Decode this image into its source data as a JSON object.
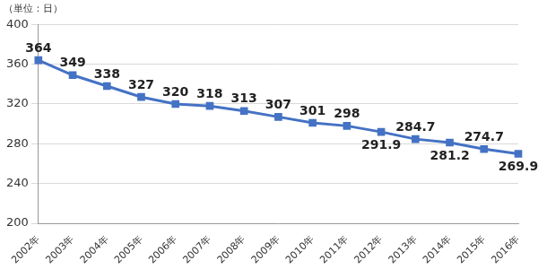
{
  "chart_data": {
    "type": "line",
    "y_label": "（単位：日）",
    "categories": [
      "2002年",
      "2003年",
      "2004年",
      "2005年",
      "2006年",
      "2007年",
      "2008年",
      "2009年",
      "2010年",
      "2011年",
      "2012年",
      "2013年",
      "2014年",
      "2015年",
      "2016年"
    ],
    "values": [
      364,
      349,
      338,
      327,
      320,
      318,
      313,
      307,
      301,
      298,
      291.9,
      284.7,
      281.2,
      274.7,
      269.9
    ],
    "color": "#4472c4",
    "marker": "square",
    "ylim": [
      200,
      400
    ],
    "yticks": [
      200,
      240,
      280,
      320,
      360,
      400
    ],
    "grid": true,
    "data_labels": true
  }
}
